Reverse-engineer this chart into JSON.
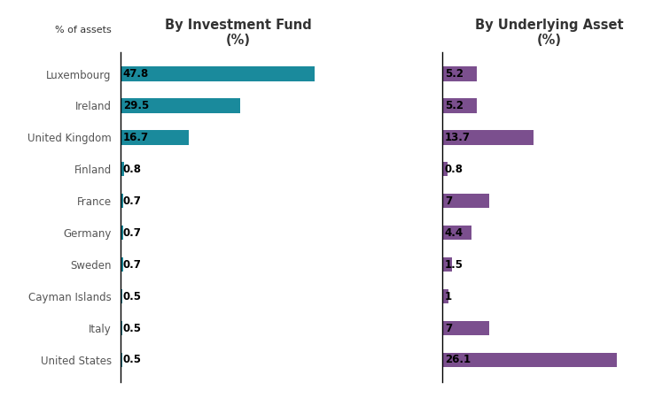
{
  "categories": [
    "Luxembourg",
    "Ireland",
    "United Kingdom",
    "Finland",
    "France",
    "Germany",
    "Sweden",
    "Cayman Islands",
    "Italy",
    "United States"
  ],
  "fund_values": [
    47.8,
    29.5,
    16.7,
    0.8,
    0.7,
    0.7,
    0.7,
    0.5,
    0.5,
    0.5
  ],
  "asset_values": [
    5.2,
    5.2,
    13.7,
    0.8,
    7.0,
    4.4,
    1.5,
    1.0,
    7.0,
    26.1
  ],
  "fund_color": "#1a8a9c",
  "asset_color": "#7b4f8e",
  "bg_color": "#ffffff",
  "title_fund": "By Investment Fund\n(%)",
  "title_asset": "By Underlying Asset\n(%)",
  "percent_label": "% of assets",
  "fund_xlim": [
    0,
    58
  ],
  "asset_xlim": [
    0,
    32
  ],
  "bar_height": 0.45,
  "value_fontsize": 8.5,
  "label_fontsize": 8.5,
  "title_fontsize": 10.5
}
